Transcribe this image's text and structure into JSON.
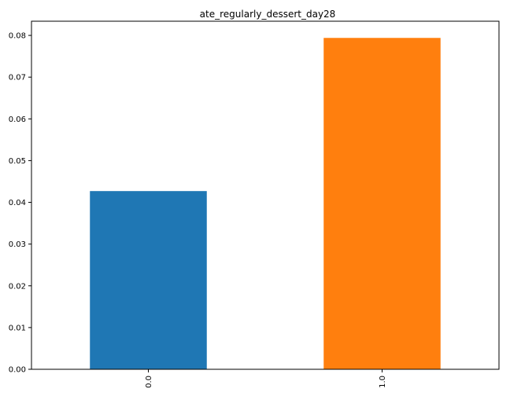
{
  "chart_data": {
    "type": "bar",
    "title": "ate_regularly_dessert_day28",
    "xlabel": "",
    "ylabel": "",
    "categories": [
      "0.0",
      "1.0"
    ],
    "values": [
      0.0427,
      0.0794
    ],
    "bar_colors": [
      "#1f77b4",
      "#ff7f0e"
    ],
    "ylim": [
      0,
      0.0834
    ],
    "yticks": [
      0,
      0.01,
      0.02,
      0.03,
      0.04,
      0.05,
      0.06,
      0.07,
      0.08
    ],
    "ytick_labels": [
      "0.00",
      "0.01",
      "0.02",
      "0.03",
      "0.04",
      "0.05",
      "0.06",
      "0.07",
      "0.08"
    ],
    "grid": false,
    "legend": "none"
  }
}
